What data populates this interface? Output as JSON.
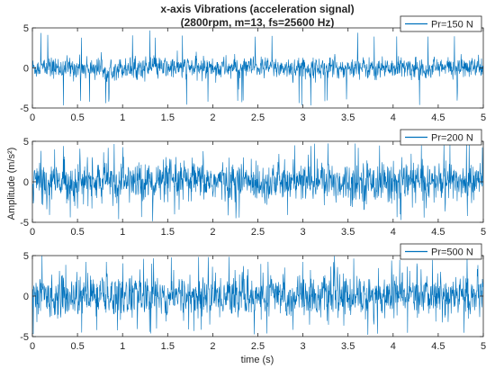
{
  "chart_data": {
    "type": "line",
    "title_line1": "x-axis Vibrations (acceleration signal)",
    "title_line2": "(2800rpm, m=13, fs=25600 Hz)",
    "xlabel": "time (s)",
    "ylabel": "Amplitude (m/s²)",
    "xlim": [
      0,
      5
    ],
    "x_ticks": [
      0,
      0.5,
      1,
      1.5,
      2,
      2.5,
      3,
      3.5,
      4,
      4.5,
      5
    ],
    "x_tick_labels": [
      "0",
      "0.5",
      "1",
      "1.5",
      "2",
      "2.5",
      "3",
      "3.5",
      "4",
      "4.5",
      "5"
    ],
    "grid": false,
    "legend_position": "top-right",
    "series_color": "#0072BD",
    "subplots": [
      {
        "ylim": [
          -5,
          5
        ],
        "y_ticks": [
          -5,
          0,
          5
        ],
        "y_tick_labels": [
          "-5",
          "0",
          "5"
        ],
        "series": [
          {
            "name": "Pr=150 N",
            "mean": 0,
            "typical_amplitude": 1.2,
            "peak_amplitude": 4.7
          }
        ]
      },
      {
        "ylim": [
          -5,
          5
        ],
        "y_ticks": [
          -5,
          0,
          5
        ],
        "y_tick_labels": [
          "-5",
          "0",
          "5"
        ],
        "series": [
          {
            "name": "Pr=200 N",
            "mean": 0,
            "typical_amplitude": 2.2,
            "peak_amplitude": 5.0
          }
        ]
      },
      {
        "ylim": [
          -5,
          5
        ],
        "y_ticks": [
          -5,
          0,
          5
        ],
        "y_tick_labels": [
          "-5",
          "0",
          "5"
        ],
        "series": [
          {
            "name": "Pr=500 N",
            "mean": 0,
            "typical_amplitude": 2.3,
            "peak_amplitude": 5.0
          }
        ]
      }
    ]
  }
}
